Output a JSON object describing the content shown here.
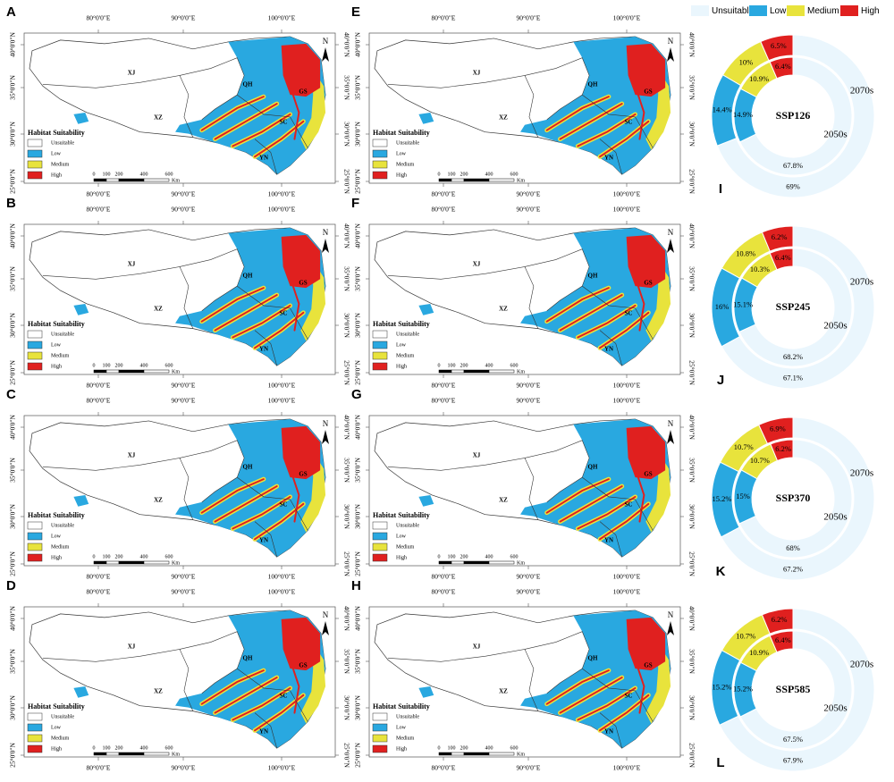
{
  "maps": {
    "panels": [
      "A",
      "B",
      "C",
      "D",
      "E",
      "F",
      "G",
      "H"
    ],
    "lon_labels": [
      "80°0'0\"E",
      "90°0'0\"E",
      "100°0'0\"E"
    ],
    "lat_labels": [
      "40°0'0\"N",
      "35°0'0\"N",
      "30°0'0\"N",
      "25°0'0\"N"
    ],
    "regions": [
      "XJ",
      "QH",
      "XZ",
      "SC",
      "YN",
      "GS"
    ],
    "legend_title": "Habitat Suitability",
    "legend_items": [
      "Unsuitable",
      "Low",
      "Medium",
      "High"
    ],
    "scale_labels": [
      "0",
      "100",
      "200",
      "400",
      "600"
    ],
    "scale_unit": "Km",
    "north": "N"
  },
  "chart_data": [
    {
      "type": "donut",
      "panel": "I",
      "title": "SSP126",
      "categories": [
        "Unsuitable",
        "Low",
        "Medium",
        "High"
      ],
      "colors": [
        "#eaf6fd",
        "#29a8e0",
        "#e8e33c",
        "#e0201f"
      ],
      "series": [
        {
          "name": "2050s",
          "values": [
            67.8,
            14.9,
            10.9,
            6.4
          ],
          "value_labels": [
            "67.8%",
            "14.9%",
            "10.9%",
            "6.4%"
          ]
        },
        {
          "name": "2070s",
          "values": [
            69,
            14.4,
            10,
            6.5
          ],
          "value_labels": [
            "69%",
            "14.4%",
            "10%",
            "6.5%"
          ]
        }
      ]
    },
    {
      "type": "donut",
      "panel": "J",
      "title": "SSP245",
      "categories": [
        "Unsuitable",
        "Low",
        "Medium",
        "High"
      ],
      "colors": [
        "#eaf6fd",
        "#29a8e0",
        "#e8e33c",
        "#e0201f"
      ],
      "series": [
        {
          "name": "2050s",
          "values": [
            68.2,
            15.1,
            10.3,
            6.4
          ],
          "value_labels": [
            "68.2%",
            "15.1%",
            "10.3%",
            "6.4%"
          ]
        },
        {
          "name": "2070s",
          "values": [
            67.1,
            16,
            10.8,
            6.2
          ],
          "value_labels": [
            "67.1%",
            "16%",
            "10.8%",
            "6.2%"
          ]
        }
      ]
    },
    {
      "type": "donut",
      "panel": "K",
      "title": "SSP370",
      "categories": [
        "Unsuitable",
        "Low",
        "Medium",
        "High"
      ],
      "colors": [
        "#eaf6fd",
        "#29a8e0",
        "#e8e33c",
        "#e0201f"
      ],
      "series": [
        {
          "name": "2050s",
          "values": [
            68,
            15,
            10.7,
            6.2
          ],
          "value_labels": [
            "68%",
            "15%",
            "10.7%",
            "6.2%"
          ]
        },
        {
          "name": "2070s",
          "values": [
            67.2,
            15.2,
            10.7,
            6.9
          ],
          "value_labels": [
            "67.2%",
            "15.2%",
            "10.7%",
            "6.9%"
          ]
        }
      ]
    },
    {
      "type": "donut",
      "panel": "L",
      "title": "SSP585",
      "categories": [
        "Unsuitable",
        "Low",
        "Medium",
        "High"
      ],
      "colors": [
        "#eaf6fd",
        "#29a8e0",
        "#e8e33c",
        "#e0201f"
      ],
      "series": [
        {
          "name": "2050s",
          "values": [
            67.5,
            15.2,
            10.9,
            6.4
          ],
          "value_labels": [
            "67.5%",
            "15.2%",
            "10.9%",
            "6.4%"
          ]
        },
        {
          "name": "2070s",
          "values": [
            67.9,
            15.2,
            10.7,
            6.2
          ],
          "value_labels": [
            "67.9%",
            "15.2%",
            "10.7%",
            "6.2%"
          ]
        }
      ]
    }
  ]
}
